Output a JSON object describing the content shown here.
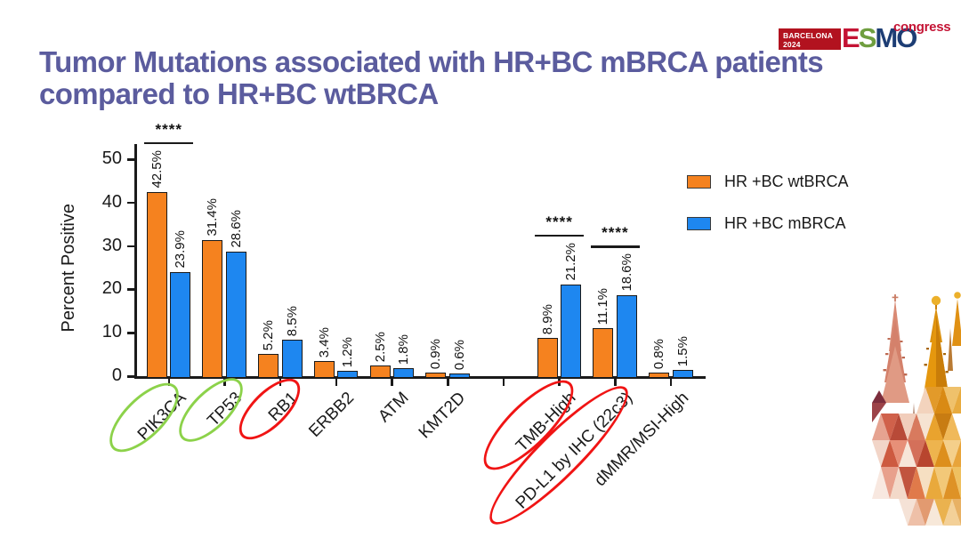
{
  "slide": {
    "title_line1": "Tumor Mutations associated with HR+BC mBRCA patients",
    "title_line2": "compared to HR+BC wtBRCA",
    "title_color": "#5b5c9e"
  },
  "logo": {
    "venue": "BARCELONA",
    "year": "2024",
    "letters": [
      {
        "ch": "E",
        "color": "#c41334"
      },
      {
        "ch": "S",
        "color": "#6f9e3f"
      },
      {
        "ch": "M",
        "color": "#1d3d74"
      },
      {
        "ch": "O",
        "color": "#1d3d74"
      }
    ],
    "congress": "congress",
    "box_color": "#b2121f"
  },
  "legend": [
    {
      "label": "HR +BC wtBRCA",
      "color": "#f5821f"
    },
    {
      "label": "HR +BC mBRCA",
      "color": "#1e87f0"
    }
  ],
  "chart_data": {
    "type": "bar",
    "title": "",
    "xlabel": "",
    "ylabel": "Percent Positive",
    "ylim": [
      0,
      50
    ],
    "yticks": [
      0,
      10,
      20,
      30,
      40,
      50
    ],
    "grid": false,
    "legend_position": "right",
    "categories": [
      "PIK3CA",
      "TP53",
      "RB1",
      "ERBB2",
      "ATM",
      "KMT2D",
      "TMB-High",
      "PD-L1 by IHC (22c3)",
      "dMMR/MSI-High"
    ],
    "slot_positions": [
      0,
      1,
      2,
      3,
      4,
      5,
      7,
      8,
      9
    ],
    "total_slots": 10,
    "gap_after": "KMT2D",
    "series": [
      {
        "name": "HR +BC wtBRCA",
        "color": "#f5821f",
        "values": [
          42.5,
          31.4,
          5.2,
          3.4,
          2.5,
          0.9,
          8.9,
          11.1,
          0.8
        ]
      },
      {
        "name": "HR +BC mBRCA",
        "color": "#1e87f0",
        "values": [
          23.9,
          28.6,
          8.5,
          1.2,
          1.8,
          0.6,
          21.2,
          18.6,
          1.5
        ]
      }
    ],
    "value_label_suffix": "%",
    "significance": [
      {
        "category": "PIK3CA",
        "label": "****"
      },
      {
        "category": "TMB-High",
        "label": "****"
      },
      {
        "category": "PD-L1 by IHC (22c3)",
        "label": "****"
      }
    ],
    "annotations": [
      {
        "category": "PIK3CA",
        "shape": "ellipse",
        "color": "#8cd24a"
      },
      {
        "category": "TP53",
        "shape": "ellipse",
        "color": "#8cd24a"
      },
      {
        "category": "RB1",
        "shape": "ellipse",
        "color": "#f01414"
      },
      {
        "category": "TMB-High",
        "shape": "ellipse",
        "color": "#f01414"
      },
      {
        "category": "PD-L1 by IHC (22c3)",
        "shape": "ellipse",
        "color": "#f01414"
      }
    ]
  }
}
